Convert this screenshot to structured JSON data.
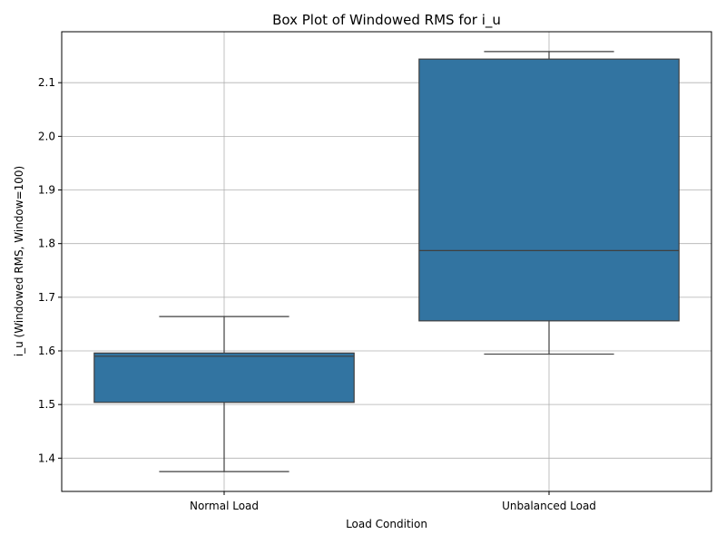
{
  "chart_data": {
    "type": "box",
    "title": "Box Plot of Windowed RMS for i_u",
    "xlabel": "Load Condition",
    "ylabel": "i_u (Windowed RMS, Window=100)",
    "categories": [
      "Normal Load",
      "Unbalanced Load"
    ],
    "boxes": [
      {
        "category": "Normal Load",
        "whisker_low": 1.375,
        "q1": 1.504,
        "median": 1.59,
        "q3": 1.596,
        "whisker_high": 1.664
      },
      {
        "category": "Unbalanced Load",
        "whisker_low": 1.594,
        "q1": 1.656,
        "median": 1.787,
        "q3": 2.144,
        "whisker_high": 2.158
      }
    ],
    "ylim": [
      1.338,
      2.195
    ],
    "yticks": [
      1.4,
      1.5,
      1.6,
      1.7,
      1.8,
      1.9,
      2.0,
      2.1
    ],
    "ytick_labels": [
      "1.4",
      "1.5",
      "1.6",
      "1.7",
      "1.8",
      "1.9",
      "2.0",
      "2.1"
    ],
    "grid": true,
    "colors": {
      "box_fill": "#3274a1",
      "line": "#3f3f3f",
      "grid": "#b0b0b0",
      "axis": "#000000"
    }
  }
}
